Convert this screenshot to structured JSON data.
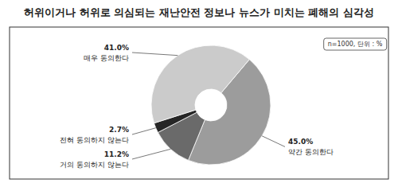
{
  "chart_data": {
    "type": "pie",
    "title": "허위이거나 허위로 의심되는 재난안전 정보나 뉴스가 미치는 폐해의 심각성",
    "note": "n=1000, 단위 : %",
    "categories": [
      "약간 동의한다",
      "거의 동의하지 않는다",
      "전혀 동의하지 않는다",
      "매우 동의한다"
    ],
    "values": [
      45.0,
      11.2,
      2.7,
      41.0
    ],
    "value_labels": [
      "45.0%",
      "11.2%",
      "2.7%",
      "41.0%"
    ],
    "colors": [
      "#9c9c9c",
      "#6a6a6a",
      "#262626",
      "#cbcbcb"
    ],
    "data_labels": true
  }
}
